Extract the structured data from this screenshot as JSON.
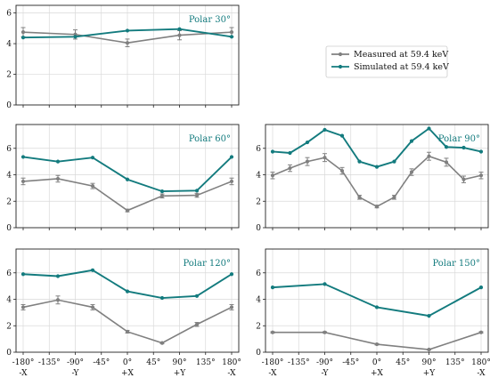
{
  "colors": {
    "measured": "#808080",
    "simulated": "#137b7e",
    "title": "#137b7e"
  },
  "legend": {
    "measured": "Measured at 59.4 keV",
    "simulated": "Simulated at 59.4 keV",
    "placement": "right, beside top panel"
  },
  "x_tick_labels": {
    "angles": [
      "-180°",
      "-135°",
      "-90°",
      "-45°",
      "0°",
      "45°",
      "90°",
      "135°",
      "180°"
    ],
    "axes": [
      "-X",
      "",
      "-Y",
      "",
      "+X",
      "",
      "+Y",
      "",
      "-X"
    ]
  },
  "chart_data": [
    {
      "type": "line",
      "title": "Polar 30°",
      "xlim": [
        -180,
        180
      ],
      "ylim": [
        0,
        6.5
      ],
      "yticks": [
        0,
        2,
        4,
        6
      ],
      "xticks": [
        -180,
        -135,
        -90,
        -45,
        0,
        45,
        90,
        135,
        180
      ],
      "grid": true,
      "series": [
        {
          "name": "Measured at 59.4 keV",
          "x": [
            -180,
            -90,
            0,
            90,
            180
          ],
          "y": [
            4.75,
            4.6,
            4.05,
            4.55,
            4.75
          ],
          "err": [
            0.3,
            0.3,
            0.25,
            0.3,
            0.3
          ]
        },
        {
          "name": "Simulated at 59.4 keV",
          "x": [
            -180,
            -90,
            0,
            90,
            180
          ],
          "y": [
            4.4,
            4.45,
            4.85,
            4.95,
            4.45
          ]
        }
      ]
    },
    {
      "type": "line",
      "title": "Polar 60°",
      "xlim": [
        -180,
        180
      ],
      "ylim": [
        0,
        7.8
      ],
      "yticks": [
        0,
        2,
        4,
        6
      ],
      "xticks": [
        -180,
        -135,
        -90,
        -45,
        0,
        45,
        90,
        135,
        180
      ],
      "grid": true,
      "series": [
        {
          "name": "Measured at 59.4 keV",
          "x": [
            -180,
            -120,
            -60,
            0,
            60,
            120,
            180
          ],
          "y": [
            3.5,
            3.7,
            3.15,
            1.3,
            2.4,
            2.45,
            3.5
          ],
          "err": [
            0.25,
            0.25,
            0.2,
            0.1,
            0.15,
            0.15,
            0.25
          ]
        },
        {
          "name": "Simulated at 59.4 keV",
          "x": [
            -180,
            -120,
            -60,
            0,
            60,
            120,
            180
          ],
          "y": [
            5.35,
            5.0,
            5.3,
            3.65,
            2.75,
            2.8,
            5.35
          ]
        }
      ]
    },
    {
      "type": "line",
      "title": "Polar 90°",
      "xlim": [
        -180,
        180
      ],
      "ylim": [
        0,
        7.8
      ],
      "yticks": [
        0,
        2,
        4,
        6
      ],
      "xticks": [
        -180,
        -135,
        -90,
        -45,
        0,
        45,
        90,
        135,
        180
      ],
      "grid": true,
      "series": [
        {
          "name": "Measured at 59.4 keV",
          "x": [
            -180,
            -150,
            -120,
            -90,
            -60,
            -30,
            0,
            30,
            60,
            90,
            120,
            150,
            180
          ],
          "y": [
            3.95,
            4.5,
            5.0,
            5.3,
            4.3,
            2.3,
            1.6,
            2.3,
            4.2,
            5.4,
            4.95,
            3.65,
            3.95
          ],
          "err": [
            0.25,
            0.25,
            0.3,
            0.3,
            0.25,
            0.15,
            0.1,
            0.15,
            0.25,
            0.3,
            0.3,
            0.25,
            0.25
          ]
        },
        {
          "name": "Simulated at 59.4 keV",
          "x": [
            -180,
            -150,
            -120,
            -90,
            -60,
            -30,
            0,
            30,
            60,
            90,
            120,
            150,
            180
          ],
          "y": [
            5.75,
            5.65,
            6.45,
            7.4,
            6.95,
            5.0,
            4.6,
            5.0,
            6.55,
            7.5,
            6.1,
            6.05,
            5.75
          ]
        }
      ]
    },
    {
      "type": "line",
      "title": "Polar 120°",
      "xlim": [
        -180,
        180
      ],
      "ylim": [
        0,
        7.8
      ],
      "yticks": [
        0,
        2,
        4,
        6
      ],
      "xticks": [
        -180,
        -135,
        -90,
        -45,
        0,
        45,
        90,
        135,
        180
      ],
      "grid": true,
      "series": [
        {
          "name": "Measured at 59.4 keV",
          "x": [
            -180,
            -120,
            -60,
            0,
            60,
            120,
            180
          ],
          "y": [
            3.4,
            3.95,
            3.4,
            1.55,
            0.7,
            2.1,
            3.4
          ],
          "err": [
            0.2,
            0.3,
            0.2,
            0.1,
            0.05,
            0.15,
            0.2
          ]
        },
        {
          "name": "Simulated at 59.4 keV",
          "x": [
            -180,
            -120,
            -60,
            0,
            60,
            120,
            180
          ],
          "y": [
            5.9,
            5.75,
            6.2,
            4.6,
            4.1,
            4.25,
            5.9
          ]
        }
      ]
    },
    {
      "type": "line",
      "title": "Polar 150°",
      "xlim": [
        -180,
        180
      ],
      "ylim": [
        0,
        7.8
      ],
      "yticks": [
        0,
        2,
        4,
        6
      ],
      "xticks": [
        -180,
        -135,
        -90,
        -45,
        0,
        45,
        90,
        135,
        180
      ],
      "grid": true,
      "series": [
        {
          "name": "Measured at 59.4 keV",
          "x": [
            -180,
            -90,
            0,
            90,
            180
          ],
          "y": [
            1.5,
            1.5,
            0.6,
            0.2,
            1.5
          ],
          "err": [
            0.05,
            0.05,
            0.05,
            0.03,
            0.05
          ]
        },
        {
          "name": "Simulated at 59.4 keV",
          "x": [
            -180,
            -90,
            0,
            90,
            180
          ],
          "y": [
            4.9,
            5.15,
            3.4,
            2.75,
            4.9
          ]
        }
      ]
    }
  ]
}
